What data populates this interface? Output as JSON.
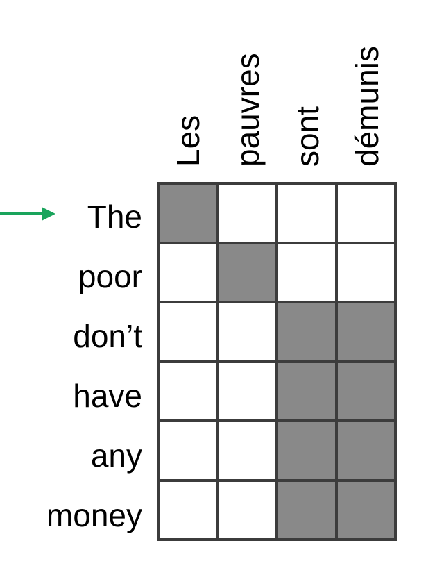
{
  "columns": [
    "Les",
    "pauvres",
    "sont",
    "démunis"
  ],
  "rows": [
    "The",
    "poor",
    "don’t",
    "have",
    "any",
    "money"
  ],
  "alignment": [
    [
      1,
      0,
      0,
      0
    ],
    [
      0,
      1,
      0,
      0
    ],
    [
      0,
      0,
      1,
      1
    ],
    [
      0,
      0,
      1,
      1
    ],
    [
      0,
      0,
      1,
      1
    ],
    [
      0,
      0,
      1,
      1
    ]
  ],
  "highlighted_row": 0,
  "colors": {
    "filled": "#898989",
    "empty": "#ffffff",
    "grid_line": "#3c3c3c",
    "arrow": "#1aa45c"
  }
}
